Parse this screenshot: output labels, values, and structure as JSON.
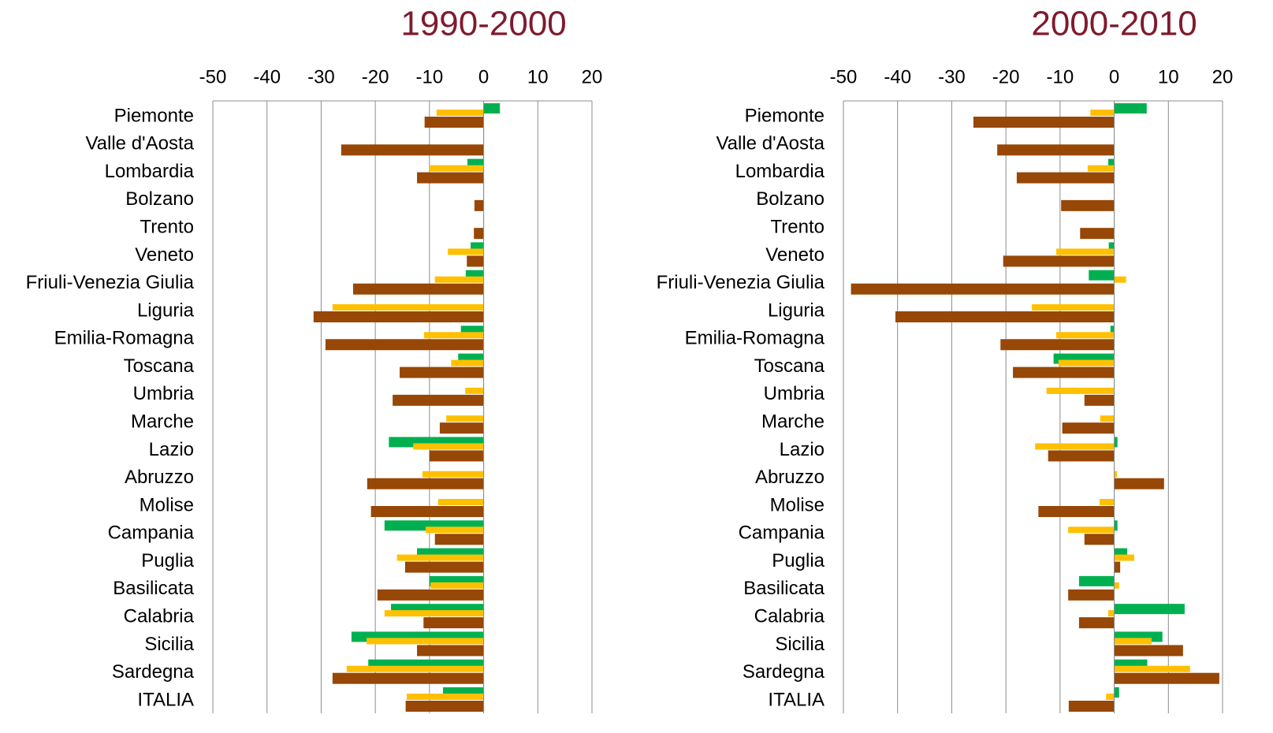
{
  "chart_data": [
    {
      "type": "hbar",
      "title": "1990-2000",
      "categories": [
        "Piemonte",
        "Valle d'Aosta",
        "Lombardia",
        "Bolzano",
        "Trento",
        "Veneto",
        "Friuli-Venezia Giulia",
        "Liguria",
        "Emilia-Romagna",
        "Toscana",
        "Umbria",
        "Marche",
        "Lazio",
        "Abruzzo",
        "Molise",
        "Campania",
        "Puglia",
        "Basilicata",
        "Calabria",
        "Sicilia",
        "Sardegna",
        "ITALIA"
      ],
      "series": [
        {
          "color": "#00b050",
          "values": [
            3,
            0,
            -3,
            0,
            0,
            -2.4,
            -3.3,
            0,
            -4.2,
            -4.7,
            0,
            0,
            -17.5,
            0,
            0,
            -18.3,
            -12.3,
            -10,
            -17.1,
            -24.4,
            -21.3,
            -7.5
          ]
        },
        {
          "color": "#ffc000",
          "values": [
            -8.7,
            0,
            -10,
            0,
            0,
            -6.6,
            -9,
            -27.9,
            -11,
            -6,
            -3.4,
            -6.9,
            -13,
            -11.3,
            -8.4,
            -10.7,
            -16,
            -9.8,
            -18.3,
            -21.6,
            -25.3,
            -14.2
          ]
        },
        {
          "color": "#974706",
          "values": [
            -10.9,
            -26.3,
            -12.3,
            -1.7,
            -1.8,
            -3.1,
            -24.1,
            -31.4,
            -29.2,
            -15.5,
            -16.8,
            -8.1,
            -10,
            -21.5,
            -20.8,
            -9,
            -14.5,
            -19.6,
            -11.1,
            -12.3,
            -27.9,
            -14.4
          ]
        }
      ],
      "xlim": [
        -50,
        20
      ],
      "xticks": [
        -50,
        -40,
        -30,
        -20,
        -10,
        0,
        10,
        20
      ],
      "grid": true
    },
    {
      "type": "hbar",
      "title": "2000-2010",
      "categories": [
        "Piemonte",
        "Valle d'Aosta",
        "Lombardia",
        "Bolzano",
        "Trento",
        "Veneto",
        "Friuli-Venezia Giulia",
        "Liguria",
        "Emilia-Romagna",
        "Toscana",
        "Umbria",
        "Marche",
        "Lazio",
        "Abruzzo",
        "Molise",
        "Campania",
        "Puglia",
        "Basilicata",
        "Calabria",
        "Sicilia",
        "Sardegna",
        "ITALIA"
      ],
      "series": [
        {
          "color": "#00b050",
          "values": [
            6,
            0,
            -1.1,
            0,
            0,
            -1,
            -4.7,
            0,
            -0.7,
            -11.2,
            0,
            0,
            0.6,
            0,
            0,
            0.6,
            2.4,
            -6.5,
            13,
            8.9,
            6.1,
            0.9
          ]
        },
        {
          "color": "#ffc000",
          "values": [
            -4.4,
            0,
            -4.9,
            0,
            0,
            -10.7,
            2.2,
            -15.2,
            -10.7,
            -10.3,
            -12.5,
            -2.6,
            -14.6,
            0.5,
            -2.7,
            -8.5,
            3.7,
            0.9,
            -1.1,
            6.9,
            14,
            -1.5
          ]
        },
        {
          "color": "#974706",
          "values": [
            -26,
            -21.6,
            -18,
            -9.8,
            -6.3,
            -20.5,
            -48.6,
            -40.4,
            -21,
            -18.7,
            -5.5,
            -9.6,
            -12.2,
            9.2,
            -14,
            -5.5,
            1.1,
            -8.5,
            -6.5,
            12.7,
            19.4,
            -8.4
          ]
        }
      ],
      "xlim": [
        -50,
        20
      ],
      "xticks": [
        -50,
        -40,
        -30,
        -20,
        -10,
        0,
        10,
        20
      ],
      "grid": true
    }
  ]
}
